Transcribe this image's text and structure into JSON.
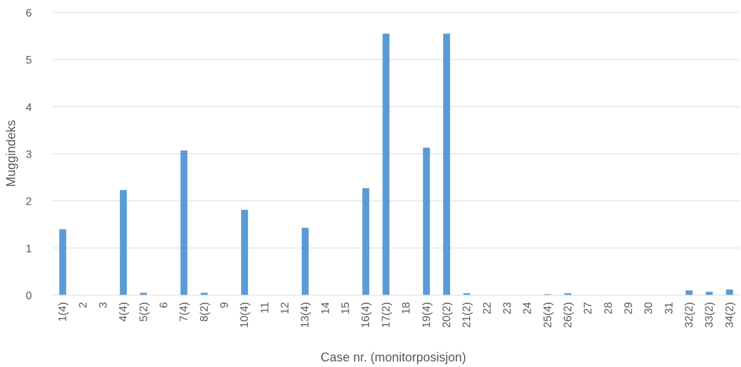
{
  "chart_data": {
    "type": "bar",
    "title": "",
    "xlabel": "Case nr. (monitorposisjon)",
    "ylabel": "Muggindeks",
    "ylim": [
      0,
      6
    ],
    "yticks": [
      0,
      1,
      2,
      3,
      4,
      5,
      6
    ],
    "grid": true,
    "bar_color": "#5B9BD5",
    "categories": [
      "1(4)",
      "2",
      "3",
      "4(4)",
      "5(2)",
      "6",
      "7(4)",
      "8(2)",
      "9",
      "10(4)",
      "11",
      "12",
      "13(4)",
      "14",
      "15",
      "16(4)",
      "17(2)",
      "18",
      "19(4)",
      "20(2)",
      "21(2)",
      "22",
      "23",
      "24",
      "25(4)",
      "26(2)",
      "27",
      "28",
      "29",
      "30",
      "31",
      "32(2)",
      "33(2)",
      "34(2)"
    ],
    "values": [
      1.4,
      0,
      0,
      2.23,
      0.05,
      0,
      3.07,
      0.05,
      0,
      1.81,
      0,
      0,
      1.43,
      0,
      0,
      2.27,
      5.55,
      0,
      3.13,
      5.55,
      0.04,
      0,
      0,
      0,
      0.02,
      0.04,
      0,
      0,
      0,
      0,
      0,
      0.1,
      0.07,
      0.12
    ]
  }
}
